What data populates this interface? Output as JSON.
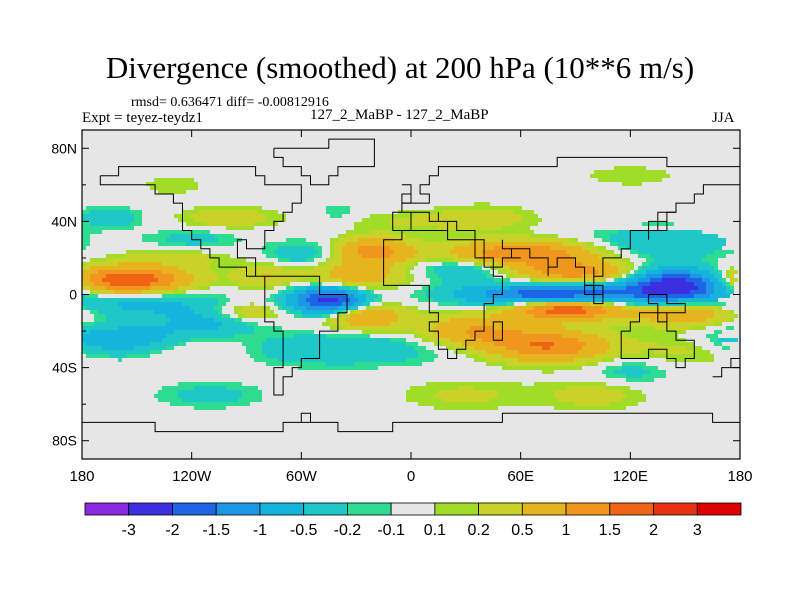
{
  "chart_data": {
    "type": "heatmap",
    "title": "Divergence (smoothed) at 200 hPa (10**6 m/s)",
    "stats": "rmsd= 0.636471 diff= -0.00812916",
    "left_label": "Expt = teyez-teydz1",
    "center_label": "127_2_MaBP - 127_2_MaBP",
    "right_label": "JJA",
    "xlim": [
      -180,
      180
    ],
    "ylim": [
      -90,
      90
    ],
    "x_ticks": [
      {
        "value": -180,
        "label": "180"
      },
      {
        "value": -120,
        "label": "120W"
      },
      {
        "value": -60,
        "label": "60W"
      },
      {
        "value": 0,
        "label": "0"
      },
      {
        "value": 60,
        "label": "60E"
      },
      {
        "value": 120,
        "label": "120E"
      },
      {
        "value": 180,
        "label": "180"
      }
    ],
    "y_ticks": [
      {
        "value": 80,
        "label": "80N"
      },
      {
        "value": 40,
        "label": "40N"
      },
      {
        "value": 0,
        "label": "0"
      },
      {
        "value": -40,
        "label": "40S"
      },
      {
        "value": -80,
        "label": "80S"
      }
    ],
    "colorbar": {
      "colors": [
        "#8a2be2",
        "#3c2fe0",
        "#1e64e6",
        "#1e96e6",
        "#14b4dc",
        "#1ec8c8",
        "#2ddc91",
        "#e6e6e6",
        "#a0dc28",
        "#c8d228",
        "#e6b41e",
        "#f0961e",
        "#f06414",
        "#e63214",
        "#dc0000"
      ],
      "labels": [
        "-3",
        "-2",
        "-1.5",
        "-1",
        "-0.5",
        "-0.2",
        "-0.1",
        "0.1",
        "0.2",
        "0.5",
        "1",
        "1.5",
        "2",
        "3"
      ]
    },
    "features": [
      {
        "lon": -155,
        "lat": 8,
        "value": 2.0,
        "sx": 22,
        "sy": 5
      },
      {
        "lon": -150,
        "lat": -5,
        "value": -0.6,
        "sx": 35,
        "sy": 5
      },
      {
        "lon": -160,
        "lat": -25,
        "value": -0.9,
        "sx": 25,
        "sy": 6
      },
      {
        "lon": -165,
        "lat": 42,
        "value": -0.4,
        "sx": 12,
        "sy": 4
      },
      {
        "lon": -130,
        "lat": 20,
        "value": 0.3,
        "sx": 22,
        "sy": 4
      },
      {
        "lon": -90,
        "lat": -10,
        "value": 0.6,
        "sx": 14,
        "sy": 4
      },
      {
        "lon": -110,
        "lat": -15,
        "value": -0.6,
        "sx": 20,
        "sy": 5
      },
      {
        "lon": -120,
        "lat": 30,
        "value": -0.3,
        "sx": 18,
        "sy": 4
      },
      {
        "lon": -100,
        "lat": 42,
        "value": 0.4,
        "sx": 18,
        "sy": 4
      },
      {
        "lon": -120,
        "lat": -30,
        "value": 0.3,
        "sx": 25,
        "sy": 5
      },
      {
        "lon": -80,
        "lat": 10,
        "value": 0.5,
        "sx": 12,
        "sy": 5
      },
      {
        "lon": -45,
        "lat": -3,
        "value": -2.3,
        "sx": 14,
        "sy": 5
      },
      {
        "lon": -30,
        "lat": 10,
        "value": 0.8,
        "sx": 18,
        "sy": 6
      },
      {
        "lon": -20,
        "lat": 24,
        "value": 1.2,
        "sx": 14,
        "sy": 5
      },
      {
        "lon": -25,
        "lat": -12,
        "value": 1.0,
        "sx": 15,
        "sy": 5
      },
      {
        "lon": -60,
        "lat": 22,
        "value": -0.4,
        "sx": 14,
        "sy": 5
      },
      {
        "lon": -40,
        "lat": -30,
        "value": -0.5,
        "sx": 40,
        "sy": 6
      },
      {
        "lon": 30,
        "lat": 15,
        "value": -0.6,
        "sx": 18,
        "sy": 5
      },
      {
        "lon": 35,
        "lat": -20,
        "value": 1.0,
        "sx": 20,
        "sy": 6
      },
      {
        "lon": 40,
        "lat": 42,
        "value": 0.3,
        "sx": 20,
        "sy": 5
      },
      {
        "lon": 60,
        "lat": 22,
        "value": 1.5,
        "sx": 30,
        "sy": 5
      },
      {
        "lon": 80,
        "lat": 0,
        "value": -2.0,
        "sx": 35,
        "sy": 4
      },
      {
        "lon": 85,
        "lat": -8,
        "value": 2.0,
        "sx": 20,
        "sy": 4
      },
      {
        "lon": 75,
        "lat": -28,
        "value": 1.5,
        "sx": 22,
        "sy": 6
      },
      {
        "lon": 90,
        "lat": 12,
        "value": 1.2,
        "sx": 22,
        "sy": 4
      },
      {
        "lon": 145,
        "lat": 5,
        "value": -2.5,
        "sx": 18,
        "sy": 6
      },
      {
        "lon": 150,
        "lat": -10,
        "value": 1.0,
        "sx": 20,
        "sy": 5
      },
      {
        "lon": 135,
        "lat": 28,
        "value": -0.5,
        "sx": 28,
        "sy": 6
      },
      {
        "lon": 155,
        "lat": -30,
        "value": 0.3,
        "sx": 25,
        "sy": 6
      },
      {
        "lon": 100,
        "lat": -55,
        "value": 0.3,
        "sx": 20,
        "sy": 6
      },
      {
        "lon": 120,
        "lat": -42,
        "value": -0.3,
        "sx": 15,
        "sy": 5
      },
      {
        "lon": 0,
        "lat": 40,
        "value": 0.2,
        "sx": 30,
        "sy": 4
      },
      {
        "lon": -110,
        "lat": -55,
        "value": -0.3,
        "sx": 20,
        "sy": 5
      },
      {
        "lon": 30,
        "lat": -55,
        "value": 0.25,
        "sx": 25,
        "sy": 6
      },
      {
        "lon": 120,
        "lat": 65,
        "value": 0.2,
        "sx": 18,
        "sy": 4
      },
      {
        "lon": -130,
        "lat": 60,
        "value": 0.2,
        "sx": 12,
        "sy": 4
      },
      {
        "lon": -40,
        "lat": 45,
        "value": -0.2,
        "sx": 8,
        "sy": 4
      }
    ]
  }
}
